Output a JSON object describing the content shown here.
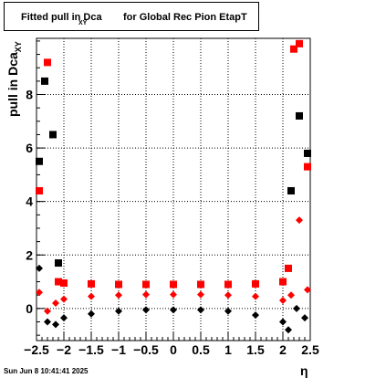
{
  "title": {
    "main": "Fitted pull in Dca",
    "sub": "XY",
    "rest": "for Global Rec Pion EtapT"
  },
  "footer": "Sun Jun  8 10:41:41 2025",
  "chart_data": {
    "type": "scatter",
    "ylabel": {
      "main": "pull in Dca",
      "sub": "XY"
    },
    "xlabel": "η",
    "xlim": [
      -2.5,
      2.5
    ],
    "ylim": [
      -1.2,
      10.1
    ],
    "grid": true,
    "xticks": [
      -2.5,
      -2,
      -1.5,
      -1,
      -0.5,
      0,
      0.5,
      1,
      1.5,
      2,
      2.5
    ],
    "xtick_labels": [
      "−2.5",
      "−2",
      "−1.5",
      "−1",
      "−0.5",
      "0",
      "0.5",
      "1",
      "1.5",
      "2",
      "2.5"
    ],
    "yticks": [
      0,
      2,
      4,
      6,
      8
    ],
    "ytick_labels": [
      "0",
      "2",
      "4",
      "6",
      "8"
    ],
    "series": [
      {
        "color": "#ff0000",
        "marker": "square",
        "points": [
          [
            -2.45,
            4.4
          ],
          [
            -2.3,
            9.2
          ],
          [
            -2.1,
            1.0
          ],
          [
            -2.0,
            0.95
          ],
          [
            -1.5,
            0.92
          ],
          [
            -1.0,
            0.9
          ],
          [
            -0.5,
            0.9
          ],
          [
            0,
            0.9
          ],
          [
            0.5,
            0.9
          ],
          [
            1.0,
            0.9
          ],
          [
            1.5,
            0.92
          ],
          [
            2.0,
            1.0
          ],
          [
            2.1,
            1.5
          ],
          [
            2.2,
            9.7
          ],
          [
            2.3,
            9.9
          ],
          [
            2.45,
            5.3
          ]
        ]
      },
      {
        "color": "#ff0000",
        "marker": "diamond",
        "points": [
          [
            -2.45,
            0.6
          ],
          [
            -2.3,
            -0.1
          ],
          [
            -2.15,
            0.2
          ],
          [
            -2.0,
            0.35
          ],
          [
            -1.5,
            0.45
          ],
          [
            -1.0,
            0.5
          ],
          [
            -0.5,
            0.52
          ],
          [
            0,
            0.52
          ],
          [
            0.5,
            0.52
          ],
          [
            1.0,
            0.5
          ],
          [
            1.5,
            0.45
          ],
          [
            2.0,
            0.3
          ],
          [
            2.15,
            0.5
          ],
          [
            2.3,
            3.3
          ],
          [
            2.45,
            0.7
          ]
        ]
      },
      {
        "color": "#000000",
        "marker": "square",
        "points": [
          [
            -2.45,
            5.5
          ],
          [
            -2.35,
            8.5
          ],
          [
            -2.2,
            6.5
          ],
          [
            -2.1,
            1.7
          ],
          [
            2.15,
            4.4
          ],
          [
            2.3,
            7.2
          ],
          [
            2.45,
            5.8
          ]
        ]
      },
      {
        "color": "#000000",
        "marker": "diamond",
        "points": [
          [
            -2.45,
            1.5
          ],
          [
            -2.3,
            -0.5
          ],
          [
            -2.15,
            -0.6
          ],
          [
            -2.0,
            -0.35
          ],
          [
            -1.5,
            -0.2
          ],
          [
            -1.0,
            -0.1
          ],
          [
            -0.5,
            -0.05
          ],
          [
            0,
            -0.05
          ],
          [
            0.5,
            -0.05
          ],
          [
            1.0,
            -0.1
          ],
          [
            1.5,
            -0.25
          ],
          [
            2.0,
            -0.5
          ],
          [
            2.1,
            -0.8
          ],
          [
            2.25,
            0.0
          ],
          [
            2.4,
            -0.35
          ]
        ]
      }
    ]
  }
}
